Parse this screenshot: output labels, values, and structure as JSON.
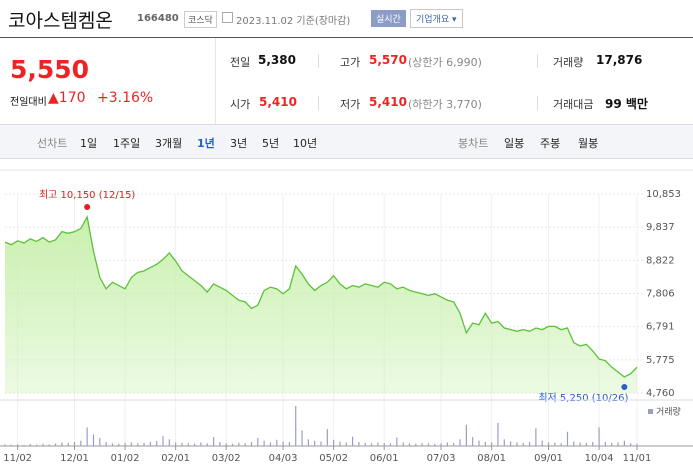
{
  "header": {
    "name": "코아스템켐온",
    "code": "166480",
    "market": "코스닥",
    "date": "2023.11.02 기준(장마감)",
    "realtime": "실시간",
    "company_button": "기업개요"
  },
  "price": {
    "current": "5,550",
    "change_label": "전일대비",
    "change": "170",
    "rate": "+3.16%"
  },
  "stats": [
    [
      {
        "label": "전일",
        "value": "5,380"
      },
      {
        "label": "고가",
        "value": "5,570",
        "limit": "(상한가 6,990)"
      },
      {
        "label": "거래량",
        "value": "17,876"
      }
    ],
    [
      {
        "label": "시가",
        "value": "5,410"
      },
      {
        "label": "저가",
        "value": "5,410",
        "limit": "(하한가 3,770)"
      },
      {
        "label": "거래대금",
        "value": "99 백만"
      }
    ]
  ],
  "tabs": {
    "line_label": "선차트",
    "periods": [
      "1일",
      "1주일",
      "3개월",
      "1년",
      "3년",
      "5년",
      "10년"
    ],
    "selected": 3,
    "candle_label": "봉차트",
    "candles": [
      "일봉",
      "주봉",
      "월봉"
    ]
  },
  "chart_data": {
    "type": "line",
    "categories": [
      null,
      null,
      "11/02",
      null,
      null,
      null,
      null,
      null,
      null,
      null,
      null,
      "12/01",
      null,
      null,
      null,
      null,
      null,
      null,
      null,
      "01/02",
      null,
      null,
      null,
      null,
      null,
      null,
      null,
      "02/01",
      null,
      null,
      null,
      null,
      null,
      null,
      null,
      "03/02",
      null,
      null,
      null,
      null,
      null,
      null,
      null,
      null,
      "04/03",
      null,
      null,
      null,
      null,
      null,
      null,
      null,
      "05/02",
      null,
      null,
      null,
      null,
      null,
      null,
      null,
      "06/01",
      null,
      null,
      null,
      null,
      null,
      null,
      null,
      null,
      "07/03",
      null,
      null,
      null,
      null,
      null,
      null,
      null,
      "08/01",
      null,
      null,
      null,
      null,
      null,
      null,
      null,
      null,
      "09/01",
      null,
      null,
      null,
      null,
      null,
      null,
      null,
      "10/04",
      null,
      null,
      null,
      null,
      null,
      "11/01"
    ],
    "values": [
      9380,
      9300,
      9420,
      9350,
      9480,
      9400,
      9520,
      9380,
      9450,
      9700,
      9650,
      9700,
      9800,
      10150,
      9100,
      8300,
      7950,
      8150,
      8050,
      7950,
      8300,
      8450,
      8500,
      8600,
      8700,
      8850,
      9050,
      8800,
      8500,
      8350,
      8200,
      8050,
      7850,
      8100,
      8000,
      7900,
      7750,
      7600,
      7550,
      7350,
      7450,
      7900,
      8000,
      7950,
      7800,
      7950,
      8650,
      8400,
      8100,
      7900,
      8050,
      8150,
      8350,
      8100,
      7950,
      8050,
      8000,
      8100,
      8050,
      8000,
      8150,
      8100,
      7950,
      8000,
      7900,
      7850,
      7800,
      7750,
      7800,
      7700,
      7600,
      7550,
      7200,
      6600,
      6900,
      6850,
      7200,
      6900,
      6950,
      6750,
      6700,
      6650,
      6700,
      6650,
      6750,
      6700,
      6800,
      6800,
      6700,
      6750,
      6300,
      6200,
      6250,
      6050,
      5800,
      5750,
      5550,
      5400,
      5250,
      5350,
      5550
    ],
    "color": "#5cc13a",
    "fill": "#c9f0ae",
    "ylim": [
      4760,
      10853
    ],
    "yticks": [
      {
        "value": 10853,
        "label": "10,853"
      },
      {
        "value": 9837,
        "label": "9,837"
      },
      {
        "value": 8822,
        "label": "8,822"
      },
      {
        "value": 7806,
        "label": "7,806"
      },
      {
        "value": 6791,
        "label": "6,791"
      },
      {
        "value": 5775,
        "label": "5,775"
      },
      {
        "value": 4760,
        "label": "4,760"
      }
    ],
    "grid": true,
    "annotations": [
      {
        "text": "최고 10,150 (12/15)",
        "value": 10150,
        "color": "#e0201f"
      },
      {
        "text": "최저 5,250 (10/26)",
        "value": 5250,
        "color": "#2a5fc9"
      }
    ],
    "volume": {
      "name": "거래량",
      "color": "#9b9dc9",
      "values": [
        40000,
        30000,
        35000,
        25000,
        45000,
        30000,
        50000,
        35000,
        60000,
        80000,
        70000,
        90000,
        120000,
        420000,
        260000,
        180000,
        90000,
        60000,
        50000,
        70000,
        80000,
        60000,
        70000,
        90000,
        110000,
        220000,
        150000,
        80000,
        70000,
        60000,
        50000,
        80000,
        60000,
        200000,
        90000,
        60000,
        50000,
        70000,
        60000,
        90000,
        180000,
        120000,
        80000,
        140000,
        100000,
        90000,
        900000,
        350000,
        150000,
        120000,
        100000,
        380000,
        140000,
        100000,
        80000,
        210000,
        90000,
        70000,
        60000,
        80000,
        70000,
        60000,
        190000,
        80000,
        60000,
        50000,
        70000,
        60000,
        50000,
        60000,
        80000,
        70000,
        150000,
        480000,
        200000,
        120000,
        90000,
        80000,
        520000,
        150000,
        100000,
        80000,
        70000,
        90000,
        400000,
        120000,
        80000,
        70000,
        60000,
        320000,
        100000,
        80000,
        70000,
        90000,
        420000,
        90000,
        70000,
        80000,
        120000,
        60000,
        50000
      ]
    }
  }
}
